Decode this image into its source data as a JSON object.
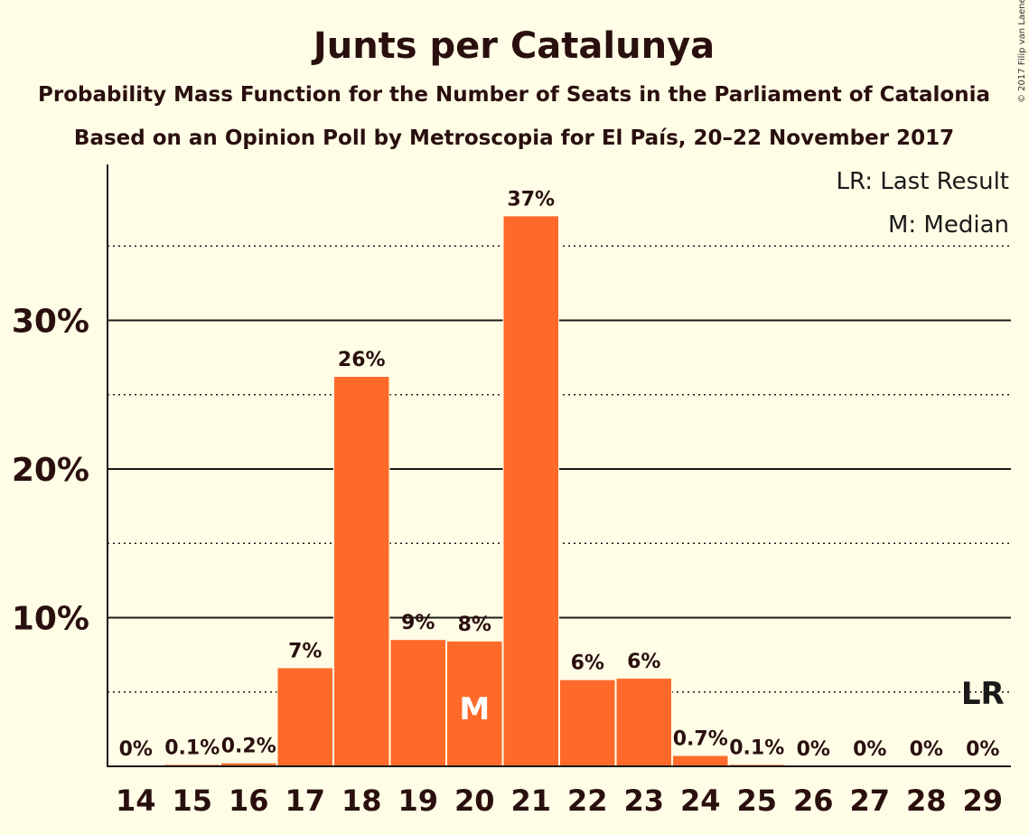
{
  "chart_data": {
    "type": "bar",
    "title": "Junts per Catalunya",
    "subtitle": "Probability Mass Function for the Number of Seats in the Parliament of Catalonia",
    "subtitle2": "Based on an Opinion Poll by Metroscopia for El País, 20–22 November 2017",
    "copyright": "© 2017 Filip van Laenen",
    "legend": {
      "last_result": "LR: Last Result",
      "median": "M: Median",
      "placement": "top-right"
    },
    "categories": [
      "14",
      "15",
      "16",
      "17",
      "18",
      "19",
      "20",
      "21",
      "22",
      "23",
      "24",
      "25",
      "26",
      "27",
      "28",
      "29"
    ],
    "values": [
      0,
      0.1,
      0.2,
      6.6,
      26.2,
      8.5,
      8.4,
      37.0,
      5.8,
      5.9,
      0.7,
      0.1,
      0,
      0,
      0,
      0
    ],
    "data_labels": [
      "0%",
      "0.1%",
      "0.2%",
      "7%",
      "26%",
      "9%",
      "8%",
      "37%",
      "6%",
      "6%",
      "0.7%",
      "0.1%",
      "0%",
      "0%",
      "0%",
      "0%"
    ],
    "yticks": [
      10,
      20,
      30
    ],
    "ytick_labels": [
      "10%",
      "20%",
      "30%"
    ],
    "dotted_gridlines": [
      5,
      15,
      25,
      35
    ],
    "ylim": [
      0,
      40
    ],
    "median_seat": "20",
    "median_marker": "M",
    "last_result_seat": "29",
    "last_result_value": 5,
    "last_result_marker": "LR",
    "colors": {
      "bar": "#FF6A2A",
      "background": "#FFFDE5",
      "bar_outline": "#ffffff"
    }
  }
}
